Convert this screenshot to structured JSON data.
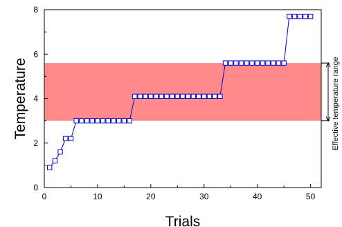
{
  "chart_data": {
    "type": "line",
    "xlabel": "Trials",
    "ylabel": "Temperature",
    "xlim": [
      0,
      52
    ],
    "ylim": [
      0,
      8
    ],
    "xticks": [
      0,
      10,
      20,
      30,
      40,
      50
    ],
    "yticks": [
      0,
      2,
      4,
      6,
      8
    ],
    "xtick_labels": [
      "0",
      "10",
      "20",
      "30",
      "40",
      "50"
    ],
    "ytick_labels": [
      "0",
      "2",
      "4",
      "6",
      "8"
    ],
    "grid": false,
    "series": [
      {
        "x": [
          1,
          2,
          3,
          4,
          5,
          6,
          7,
          8,
          9,
          10,
          11,
          12,
          13,
          14,
          15,
          16,
          17,
          18,
          19,
          20,
          21,
          22,
          23,
          24,
          25,
          26,
          27,
          28,
          29,
          30,
          31,
          32,
          33,
          34,
          35,
          36,
          37,
          38,
          39,
          40,
          41,
          42,
          43,
          44,
          45,
          46,
          47,
          48,
          49,
          50
        ],
        "y": [
          0.9,
          1.2,
          1.6,
          2.2,
          2.2,
          3.0,
          3.0,
          3.0,
          3.0,
          3.0,
          3.0,
          3.0,
          3.0,
          3.0,
          3.0,
          3.0,
          4.1,
          4.1,
          4.1,
          4.1,
          4.1,
          4.1,
          4.1,
          4.1,
          4.1,
          4.1,
          4.1,
          4.1,
          4.1,
          4.1,
          4.1,
          4.1,
          4.1,
          5.6,
          5.6,
          5.6,
          5.6,
          5.6,
          5.6,
          5.6,
          5.6,
          5.6,
          5.6,
          5.6,
          5.6,
          7.7,
          7.7,
          7.7,
          7.7,
          7.7
        ],
        "color": "#0000cc",
        "marker": "square-open"
      }
    ],
    "band": {
      "y_range": [
        3.0,
        5.6
      ],
      "color": "#ff8a8a",
      "label": "Effective temperature range"
    }
  }
}
